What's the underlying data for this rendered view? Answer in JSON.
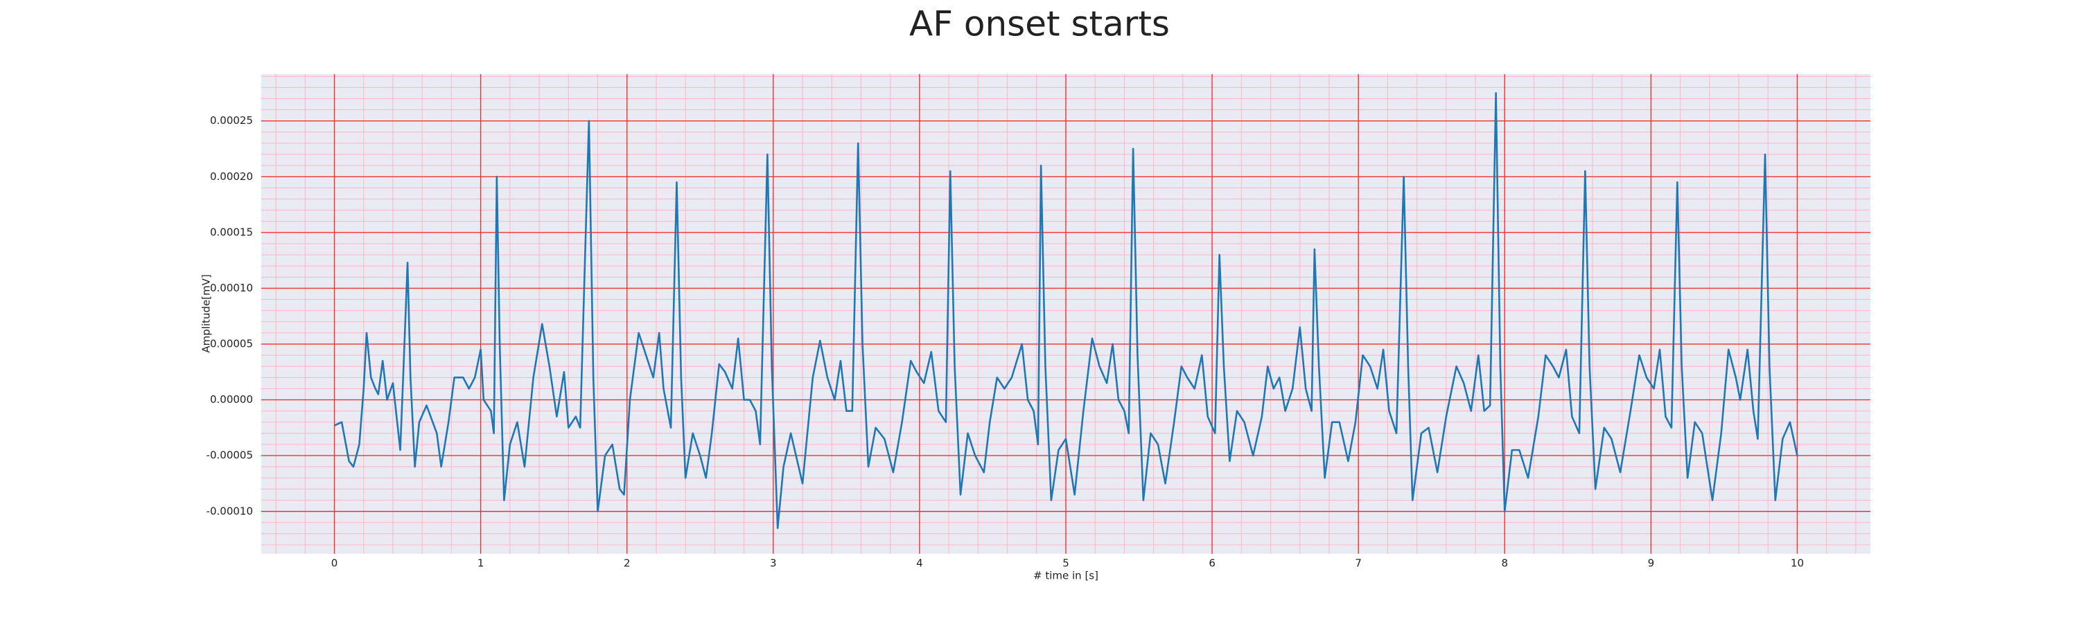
{
  "chart_data": {
    "type": "line",
    "title": "AF onset starts",
    "xlabel": "# time in [s]",
    "ylabel": "Amplitude[mV]",
    "color": "#1f77b4",
    "grid": true,
    "minor_grid": true,
    "xlim": [
      -0.5,
      10.5
    ],
    "ylim": [
      -0.000138,
      0.000292
    ],
    "xticks": [
      0,
      1,
      2,
      3,
      4,
      5,
      6,
      7,
      8,
      9,
      10
    ],
    "yticks": [
      {
        "value": -0.0001,
        "label": "-0.00010"
      },
      {
        "value": -5e-05,
        "label": "-0.00005"
      },
      {
        "value": 0,
        "label": "0.00000"
      },
      {
        "value": 5e-05,
        "label": "0.00005"
      },
      {
        "value": 0.0001,
        "label": "0.00010"
      },
      {
        "value": 0.00015,
        "label": "0.00015"
      },
      {
        "value": 0.0002,
        "label": "0.00020"
      },
      {
        "value": 0.00025,
        "label": "0.00025"
      }
    ],
    "x": [
      0,
      0.05,
      0.1,
      0.13,
      0.17,
      0.2,
      0.22,
      0.25,
      0.28,
      0.3,
      0.33,
      0.36,
      0.4,
      0.45,
      0.47,
      0.5,
      0.52,
      0.55,
      0.58,
      0.63,
      0.7,
      0.73,
      0.78,
      0.82,
      0.88,
      0.92,
      0.96,
      1.0,
      1.02,
      1.07,
      1.09,
      1.11,
      1.13,
      1.16,
      1.2,
      1.25,
      1.3,
      1.36,
      1.42,
      1.47,
      1.52,
      1.57,
      1.6,
      1.65,
      1.68,
      1.74,
      1.77,
      1.8,
      1.85,
      1.9,
      1.95,
      1.98,
      2.02,
      2.08,
      2.13,
      2.18,
      2.22,
      2.25,
      2.3,
      2.34,
      2.37,
      2.4,
      2.45,
      2.5,
      2.54,
      2.58,
      2.63,
      2.67,
      2.72,
      2.76,
      2.8,
      2.84,
      2.88,
      2.91,
      2.96,
      2.99,
      3.03,
      3.07,
      3.12,
      3.2,
      3.27,
      3.32,
      3.37,
      3.42,
      3.46,
      3.5,
      3.54,
      3.58,
      3.61,
      3.65,
      3.7,
      3.76,
      3.82,
      3.88,
      3.94,
      3.98,
      4.03,
      4.08,
      4.13,
      4.18,
      4.21,
      4.24,
      4.28,
      4.33,
      4.38,
      4.44,
      4.48,
      4.53,
      4.58,
      4.63,
      4.7,
      4.74,
      4.78,
      4.81,
      4.83,
      4.86,
      4.9,
      4.95,
      5.0,
      5.06,
      5.12,
      5.18,
      5.23,
      5.28,
      5.32,
      5.36,
      5.4,
      5.43,
      5.46,
      5.49,
      5.53,
      5.58,
      5.63,
      5.68,
      5.74,
      5.79,
      5.83,
      5.88,
      5.93,
      5.97,
      6.02,
      6.05,
      6.08,
      6.12,
      6.17,
      6.22,
      6.28,
      6.34,
      6.38,
      6.42,
      6.46,
      6.5,
      6.55,
      6.6,
      6.64,
      6.68,
      6.7,
      6.73,
      6.77,
      6.82,
      6.87,
      6.93,
      6.98,
      7.03,
      7.08,
      7.13,
      7.17,
      7.21,
      7.26,
      7.31,
      7.34,
      7.37,
      7.43,
      7.48,
      7.54,
      7.6,
      7.67,
      7.72,
      7.77,
      7.82,
      7.86,
      7.9,
      7.94,
      7.97,
      8.0,
      8.05,
      8.1,
      8.16,
      8.23,
      8.28,
      8.33,
      8.37,
      8.42,
      8.46,
      8.51,
      8.55,
      8.58,
      8.62,
      8.68,
      8.73,
      8.79,
      8.86,
      8.92,
      8.97,
      9.02,
      9.06,
      9.1,
      9.14,
      9.18,
      9.21,
      9.25,
      9.3,
      9.35,
      9.42,
      9.48,
      9.53,
      9.58,
      9.61,
      9.66,
      9.7,
      9.73,
      9.78,
      9.81,
      9.85,
      9.9,
      9.95,
      10.0
    ],
    "values": [
      -2.3e-05,
      -2e-05,
      -5.5e-05,
      -6e-05,
      -4e-05,
      1e-05,
      6e-05,
      2e-05,
      1e-05,
      5e-06,
      3.5e-05,
      0,
      1.5e-05,
      -4.5e-05,
      2e-05,
      0.000123,
      2e-05,
      -6e-05,
      -2e-05,
      -5e-06,
      -3e-05,
      -6e-05,
      -2e-05,
      2e-05,
      2e-05,
      1e-05,
      2e-05,
      4.5e-05,
      0,
      -1e-05,
      -3e-05,
      0.0002,
      5e-05,
      -9e-05,
      -4e-05,
      -2e-05,
      -6e-05,
      2e-05,
      6.8e-05,
      3e-05,
      -1.5e-05,
      2.5e-05,
      -2.5e-05,
      -1.5e-05,
      -2.5e-05,
      0.00025,
      2e-05,
      -0.0001,
      -5e-05,
      -4e-05,
      -8e-05,
      -8.5e-05,
      0,
      6e-05,
      4e-05,
      2e-05,
      6e-05,
      1e-05,
      -2.5e-05,
      0.000195,
      2e-05,
      -7e-05,
      -3e-05,
      -5e-05,
      -7e-05,
      -3e-05,
      3.2e-05,
      2.5e-05,
      1e-05,
      5.5e-05,
      0,
      0,
      -1e-05,
      -4e-05,
      0.00022,
      3e-05,
      -0.000115,
      -6e-05,
      -3e-05,
      -7.5e-05,
      2e-05,
      5.3e-05,
      2e-05,
      0,
      3.5e-05,
      -1e-05,
      -1e-05,
      0.00023,
      5e-05,
      -6e-05,
      -2.5e-05,
      -3.5e-05,
      -6.5e-05,
      -2e-05,
      3.5e-05,
      2.5e-05,
      1.5e-05,
      4.3e-05,
      -1e-05,
      -2e-05,
      0.000205,
      3e-05,
      -8.5e-05,
      -3e-05,
      -5e-05,
      -6.5e-05,
      -2e-05,
      2e-05,
      1e-05,
      2e-05,
      5e-05,
      0,
      -1e-05,
      -4e-05,
      0.00021,
      3e-05,
      -9e-05,
      -4.5e-05,
      -3.5e-05,
      -8.5e-05,
      -1e-05,
      5.5e-05,
      3e-05,
      1.5e-05,
      5e-05,
      0,
      -1e-05,
      -3e-05,
      0.000225,
      4e-05,
      -9e-05,
      -3e-05,
      -4e-05,
      -7.5e-05,
      -2e-05,
      3e-05,
      2e-05,
      1e-05,
      4e-05,
      -1.5e-05,
      -3e-05,
      0.00013,
      3e-05,
      -5.5e-05,
      -1e-05,
      -2e-05,
      -5e-05,
      -1.5e-05,
      3e-05,
      1e-05,
      2e-05,
      -1e-05,
      1e-05,
      6.5e-05,
      1e-05,
      -1e-05,
      0.000135,
      3e-05,
      -7e-05,
      -2e-05,
      -2e-05,
      -5.5e-05,
      -2e-05,
      4e-05,
      3e-05,
      1e-05,
      4.5e-05,
      -1e-05,
      -3e-05,
      0.0002,
      3e-05,
      -9e-05,
      -3e-05,
      -2.5e-05,
      -6.5e-05,
      -1.5e-05,
      3e-05,
      1.5e-05,
      -1e-05,
      4e-05,
      -1e-05,
      -5e-06,
      0.000275,
      3e-05,
      -0.0001,
      -4.5e-05,
      -4.5e-05,
      -7e-05,
      -1.5e-05,
      4e-05,
      3e-05,
      2e-05,
      4.5e-05,
      -1.5e-05,
      -3e-05,
      0.000205,
      3e-05,
      -8e-05,
      -2.5e-05,
      -3.5e-05,
      -6.5e-05,
      -1e-05,
      4e-05,
      2e-05,
      1e-05,
      4.5e-05,
      -1.5e-05,
      -2.5e-05,
      0.000195,
      3e-05,
      -7e-05,
      -2e-05,
      -3e-05,
      -9e-05,
      -3e-05,
      4.5e-05,
      2e-05,
      0,
      4.5e-05,
      -1e-05,
      -3.5e-05,
      0.00022,
      3e-05,
      -9e-05,
      -3.5e-05,
      -2e-05,
      -5e-05
    ]
  }
}
